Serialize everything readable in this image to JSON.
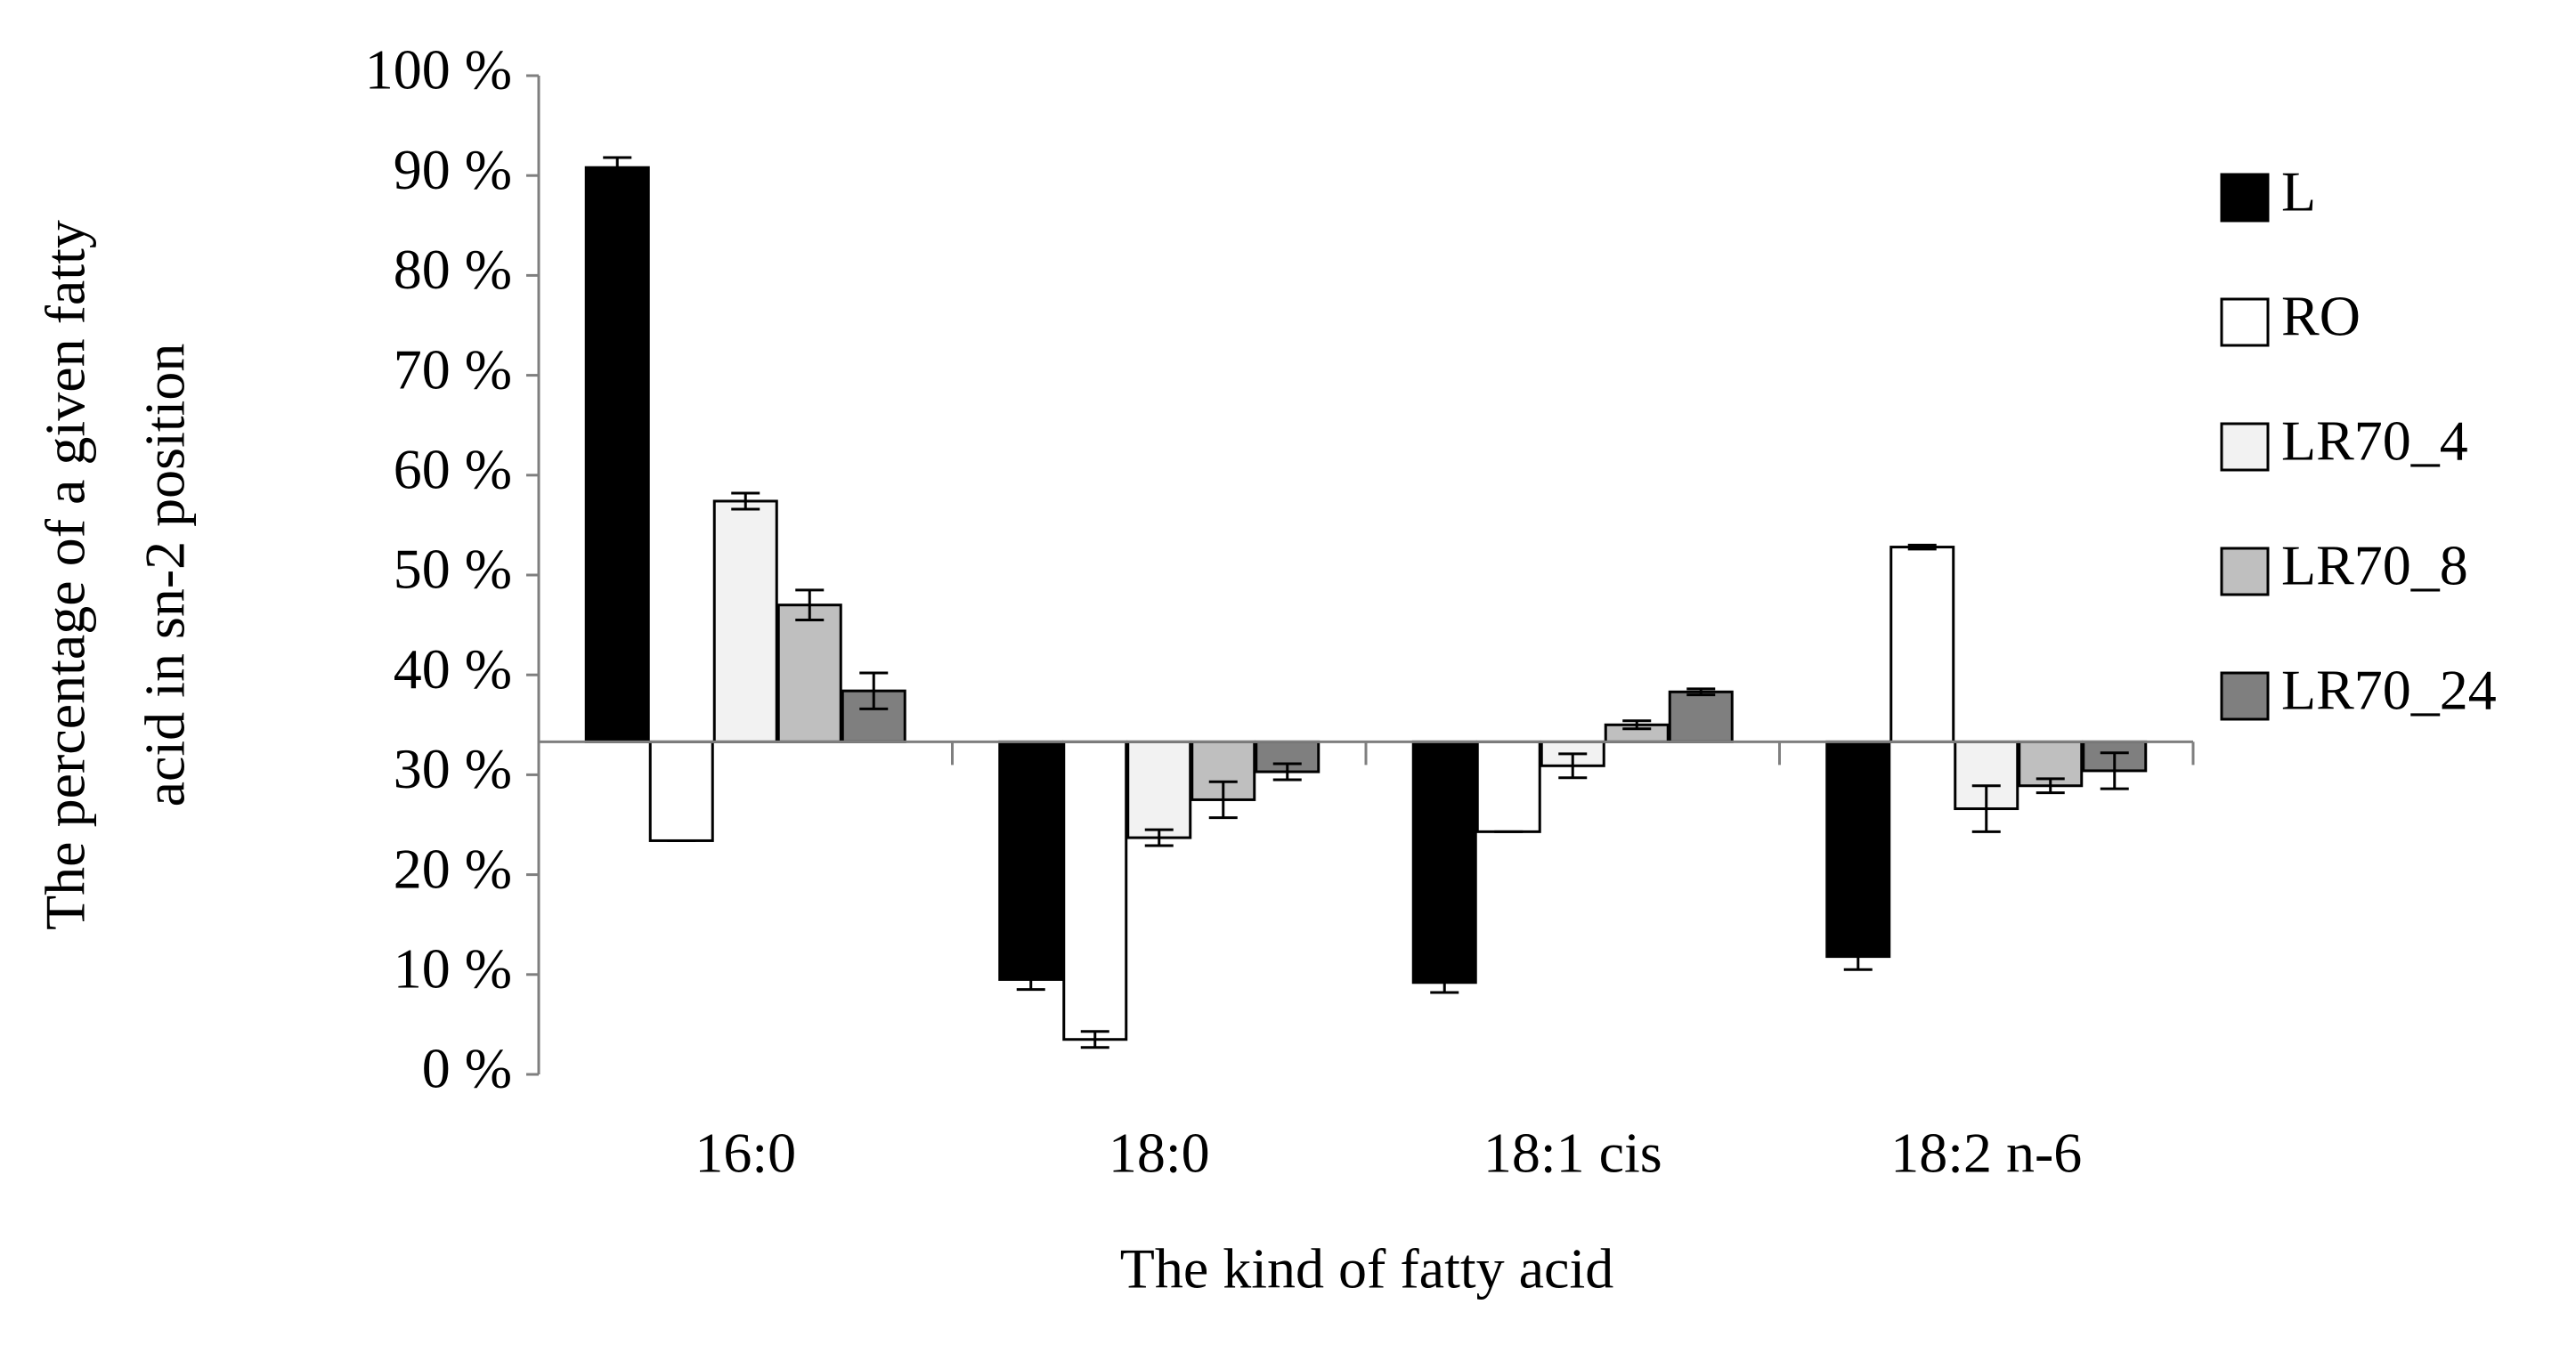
{
  "chart_data": {
    "type": "bar",
    "y_label_lines": [
      "The percentage of a given fatty",
      "acid in sn-2 position"
    ],
    "x_label": "The kind of fatty acid",
    "categories": [
      "16:0",
      "18:0",
      "18:1 cis",
      "18:2 n-6"
    ],
    "base": 33.3,
    "series": [
      {
        "name": "L",
        "color": "#000000",
        "values": [
          90.8,
          9.5,
          9.2,
          11.8
        ],
        "errors": [
          1.0,
          1.0,
          1.0,
          1.3
        ]
      },
      {
        "name": "RO",
        "color": "#ffffff",
        "values": [
          23.4,
          3.5,
          24.3,
          52.8
        ],
        "errors": [
          0,
          0.8,
          0,
          0.2
        ]
      },
      {
        "name": "LR70_4",
        "color": "#f2f2f2",
        "values": [
          57.4,
          23.7,
          30.9,
          26.6
        ],
        "errors": [
          0.8,
          0.8,
          1.2,
          2.3
        ]
      },
      {
        "name": "LR70_8",
        "color": "#bfbfbf",
        "values": [
          47.0,
          27.5,
          35.0,
          28.9
        ],
        "errors": [
          1.5,
          1.8,
          0.4,
          0.7
        ]
      },
      {
        "name": "LR70_24",
        "color": "#7f7f7f",
        "values": [
          38.4,
          30.3,
          38.3,
          30.4
        ],
        "errors": [
          1.8,
          0.8,
          0.3,
          1.8
        ]
      }
    ],
    "ylim": [
      0,
      100
    ],
    "yticks": [
      {
        "value": 0,
        "label": "0 %"
      },
      {
        "value": 10,
        "label": "10 %"
      },
      {
        "value": 20,
        "label": "20 %"
      },
      {
        "value": 30,
        "label": "30 %"
      },
      {
        "value": 40,
        "label": "40 %"
      },
      {
        "value": 50,
        "label": "50 %"
      },
      {
        "value": 60,
        "label": "60 %"
      },
      {
        "value": 70,
        "label": "70 %"
      },
      {
        "value": 80,
        "label": "80 %"
      },
      {
        "value": 90,
        "label": "90 %"
      },
      {
        "value": 100,
        "label": "100 %"
      }
    ],
    "legend": "right"
  }
}
